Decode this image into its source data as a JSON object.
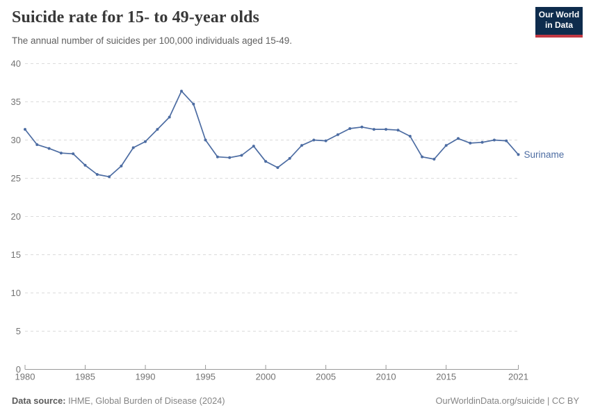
{
  "header": {
    "title": "Suicide rate for 15- to 49-year olds",
    "subtitle": "The annual number of suicides per 100,000 individuals aged 15-49.",
    "logo": {
      "line1": "Our World",
      "line2": "in Data"
    }
  },
  "chart_data": {
    "type": "line",
    "title": "Suicide rate for 15- to 49-year olds",
    "xlabel": "",
    "ylabel": "",
    "xlim": [
      1980,
      2021
    ],
    "ylim": [
      0,
      40
    ],
    "grid": "horizontal dashed",
    "legend_position": "end-of-line label",
    "x_ticks": [
      1980,
      1985,
      1990,
      1995,
      2000,
      2005,
      2010,
      2015,
      2021
    ],
    "y_ticks": [
      0,
      5,
      10,
      15,
      20,
      25,
      30,
      35,
      40
    ],
    "series": [
      {
        "name": "Suriname",
        "x": [
          1980,
          1981,
          1982,
          1983,
          1984,
          1985,
          1986,
          1987,
          1988,
          1989,
          1990,
          1991,
          1992,
          1993,
          1994,
          1995,
          1996,
          1997,
          1998,
          1999,
          2000,
          2001,
          2002,
          2003,
          2004,
          2005,
          2006,
          2007,
          2008,
          2009,
          2010,
          2011,
          2012,
          2013,
          2014,
          2015,
          2016,
          2017,
          2018,
          2019,
          2020,
          2021
        ],
        "values": [
          31.4,
          29.4,
          28.9,
          28.3,
          28.2,
          26.7,
          25.5,
          25.2,
          26.6,
          29.0,
          29.8,
          31.4,
          33.0,
          36.4,
          34.7,
          30.0,
          27.8,
          27.7,
          28.0,
          29.2,
          27.2,
          26.4,
          27.6,
          29.3,
          30.0,
          29.9,
          30.7,
          31.5,
          31.7,
          31.4,
          31.4,
          31.3,
          30.5,
          27.8,
          27.5,
          29.3,
          30.2,
          29.6,
          29.7,
          30.0,
          29.9,
          28.1
        ]
      }
    ]
  },
  "footer": {
    "source_label": "Data source:",
    "source_value": " IHME, Global Burden of Disease (2024)",
    "attribution": "OurWorldinData.org/suicide | CC BY"
  },
  "colors": {
    "line": "#4C6CA2",
    "grid": "#DBDBDB",
    "axis": "#999999",
    "tick_label": "#737373",
    "entity_label": "#4C6CA2"
  }
}
